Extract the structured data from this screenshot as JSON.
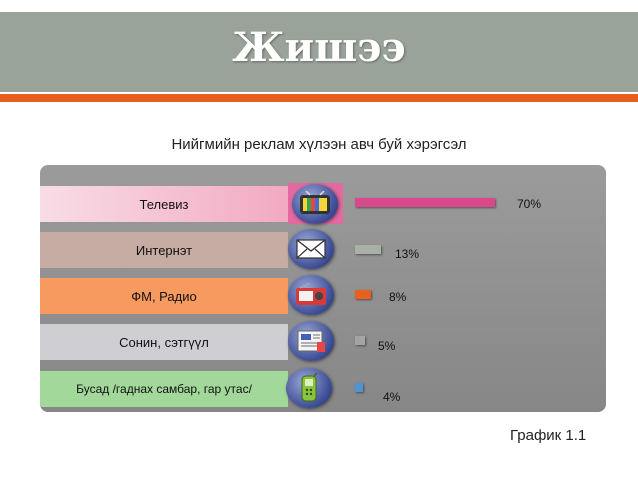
{
  "slide": {
    "title": "Жишээ",
    "caption": "График 1.1"
  },
  "chart_data": {
    "type": "bar",
    "orientation": "horizontal",
    "title": "Нийгмийн реклам хүлээн авч буй хэрэгсэл",
    "categories": [
      "Телевиз",
      "Интернэт",
      "ФМ, Радио",
      "Сонин, сэтгүүл",
      "Бусад /гаднах самбар, гар утас/"
    ],
    "values": [
      70,
      13,
      8,
      5,
      4
    ],
    "labels": [
      "70%",
      "13%",
      "8%",
      "5%",
      "4%"
    ],
    "colors": [
      "#d9488a",
      "#a9b0a6",
      "#e8601c",
      "#a4a4a4",
      "#4f95d6"
    ],
    "icons": [
      "tv-icon",
      "envelope-icon",
      "radio-icon",
      "newspaper-icon",
      "phone-icon"
    ],
    "xlim": [
      0,
      70
    ]
  }
}
